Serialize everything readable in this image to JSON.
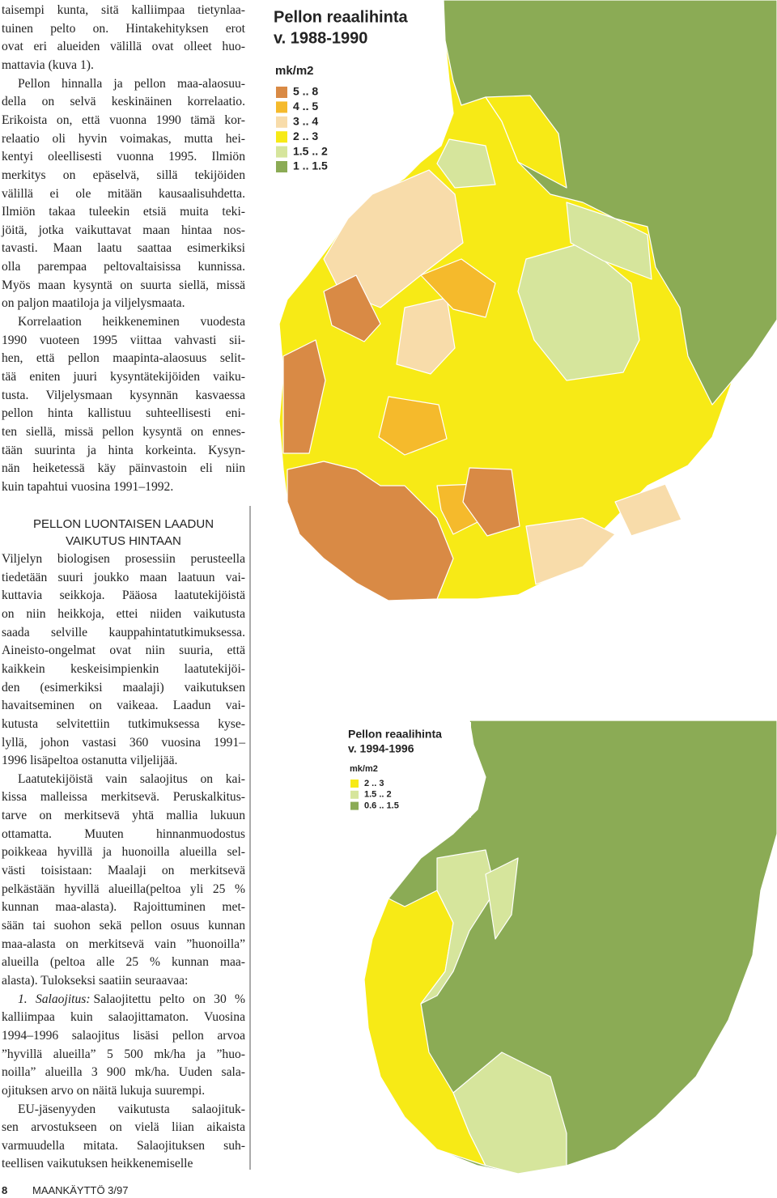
{
  "section1": {
    "paragraphs": [
      {
        "lines": [
          "taisempi kunta, sitä kalliimpaa tietynlaa-",
          "tuinen pelto on. Hintakehityksen erot",
          "ovat eri alueiden välillä ovat olleet huo-",
          "mattavia (kuva 1)."
        ]
      },
      {
        "lines": [
          "Pellon hinnalla ja pellon maa-alaosuu-",
          "della on selvä keskinäinen korrelaatio.",
          "Erikoista on, että vuonna 1990 tämä kor-",
          "relaatio oli hyvin voimakas, mutta hei-",
          "kentyi oleellisesti vuonna 1995. Ilmiön",
          "merkitys on epäselvä, sillä tekijöiden",
          "välillä ei ole mitään kausaalisuhdetta.",
          "Ilmiön takaa tuleekin etsiä muita teki-",
          "jöitä, jotka vaikuttavat maan hintaa nos-",
          "tavasti. Maan laatu saattaa esimerkiksi",
          "olla parempaa peltovaltaisissa kunnissa.",
          "Myös maan kysyntä on suurta siellä, missä",
          "on paljon maatiloja ja viljelysmaata."
        ]
      },
      {
        "lines": [
          "Korrelaation heikkeneminen vuodesta",
          "1990 vuoteen 1995 viittaa vahvasti sii-",
          "hen, että pellon maapinta-alaosuus selit-",
          "tää eniten juuri kysyntätekijöiden vaiku-",
          "tusta. Viljelysmaan kysynnän kasvaessa",
          "pellon hinta kallistuu suhteellisesti eni-",
          "ten siellä, missä pellon kysyntä on ennes-",
          "tään suurinta ja hinta korkeinta. Kysyn-",
          "nän heiketessä käy päinvastoin eli niin",
          "kuin tapahtui vuosina 1991–1992."
        ]
      }
    ]
  },
  "section2": {
    "heading": [
      "PELLON LUONTAISEN LAADUN",
      "VAIKUTUS HINTAAN"
    ],
    "paragraphs": [
      {
        "lines": [
          "Viljelyn biologisen prosessiin perusteella",
          "tiedetään suuri joukko maan laatuun vai-",
          "kuttavia seikkoja. Pääosa laatutekijöistä",
          "on niin heikkoja, ettei niiden vaikutusta",
          "saada selville kauppahintatutkimuksessa.",
          "Aineisto-ongelmat ovat niin suuria, että",
          "kaikkein keskeisimpienkin laatutekijöi-",
          "den (esimerkiksi maalaji) vaikutuksen",
          "havaitseminen on vaikeaa. Laadun vai-",
          "kutusta selvitettiin tutkimuksessa kyse-",
          "lyllä, johon vastasi 360 vuosina 1991–",
          "1996 lisäpeltoa ostanutta viljelijää."
        ]
      },
      {
        "lines": [
          "Laatutekijöistä vain salaojitus on kai-",
          "kissa malleissa merkitsevä. Peruskalkitus-",
          "tarve on merkitsevä yhtä mallia lukuun",
          "ottamatta. Muuten hinnanmuodostus",
          "poikkeaa hyvillä ja huonoilla alueilla sel-",
          "västi toisistaan: Maalaji on merkitsevä",
          "pelkästään hyvillä alueilla(peltoa yli 25 %",
          "kunnan maa-alasta). Rajoittuminen met-",
          "sään tai suohon sekä pellon osuus kunnan",
          "maa-alasta on merkitsevä vain ”huonoilla”",
          "alueilla (peltoa alle 25 % kunnan maa-",
          "alasta). Tulokseksi saatiin seuraavaa:"
        ]
      },
      {
        "lines": [
          {
            "em": "1. Salaojitus:",
            "text": "Salaojitettu pelto on 30 %"
          },
          "kalliimpaa kuin salaojittamaton. Vuosina",
          "1994–1996 salaojitus lisäsi pellon arvoa",
          "”hyvillä alueilla” 5 500 mk/ha ja ”huo-",
          "noilla” alueilla 3 900 mk/ha. Uuden sala-",
          "ojituksen arvo on näitä lukuja suurempi."
        ]
      },
      {
        "lines": [
          "EU-jäsenyyden vaikutusta salaojituk-",
          "sen arvostukseen on vielä liian aikaista",
          "varmuudella mitata. Salaojituksen suh-",
          "teellisen vaikutuksen heikkenemiselle"
        ]
      }
    ]
  },
  "map1": {
    "title": "Pellon reaalihinta",
    "subtitle": "v. 1988-1990",
    "unit": "mk/m2",
    "legend": [
      {
        "label": "5 .. 8",
        "color": "#d98a45"
      },
      {
        "label": "4 .. 5",
        "color": "#f5ba2c"
      },
      {
        "label": "3 .. 4",
        "color": "#f8dcaa"
      },
      {
        "label": "2 .. 3",
        "color": "#f7ea16"
      },
      {
        "label": "1.5 .. 2",
        "color": "#d6e59c"
      },
      {
        "label": "1 .. 1.5",
        "color": "#8bab55"
      }
    ]
  },
  "map2": {
    "title": "Pellon reaalihinta",
    "subtitle": "v. 1994-1996",
    "unit": "mk/m2",
    "legend": [
      {
        "label": "2 .. 3",
        "color": "#f7ea16"
      },
      {
        "label": "1.5 .. 2",
        "color": "#d6e59c"
      },
      {
        "label": "0.6 .. 1.5",
        "color": "#8bab55"
      }
    ]
  },
  "footer": {
    "page": "8",
    "publication": "MAANKÄYTTÖ 3/97"
  }
}
